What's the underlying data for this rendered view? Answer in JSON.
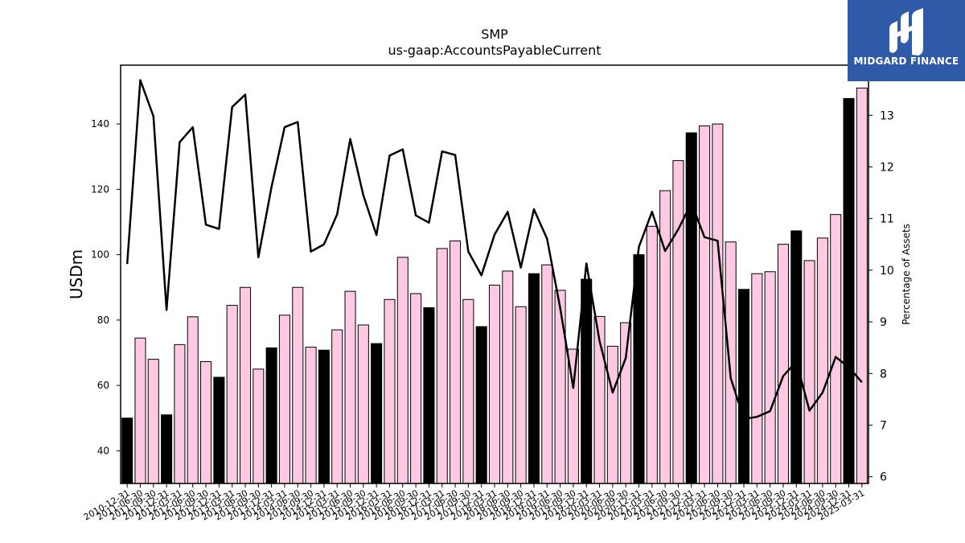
{
  "chart_data": {
    "type": "bar",
    "title": "SMP",
    "subtitle": "us-gaap:AccountsPayableCurrent",
    "ylabel": "USDm",
    "y2label": "Percentage of Assets",
    "ylim": [
      30,
      158
    ],
    "y2lim": [
      5.87,
      13.97
    ],
    "yticks": [
      40,
      60,
      80,
      100,
      120,
      140
    ],
    "y2ticks": [
      6,
      7,
      8,
      9,
      10,
      11,
      12,
      13
    ],
    "categories": [
      "2010-12-31",
      "2011-06-30",
      "2011-09-30",
      "2011-12-31",
      "2012-03-31",
      "2012-06-30",
      "2012-09-30",
      "2012-12-31",
      "2013-03-31",
      "2013-06-30",
      "2013-09-30",
      "2013-12-31",
      "2014-03-31",
      "2014-06-30",
      "2014-09-30",
      "2014-12-31",
      "2015-03-31",
      "2015-06-30",
      "2015-09-30",
      "2015-12-31",
      "2016-03-31",
      "2016-06-30",
      "2016-09-30",
      "2016-12-31",
      "2017-03-31",
      "2017-06-30",
      "2017-09-30",
      "2017-12-31",
      "2018-03-31",
      "2018-06-30",
      "2018-09-30",
      "2018-12-31",
      "2019-03-31",
      "2019-06-30",
      "2019-09-30",
      "2019-12-31",
      "2020-03-31",
      "2020-06-30",
      "2020-09-30",
      "2020-12-31",
      "2021-03-31",
      "2021-06-30",
      "2021-09-30",
      "2021-12-31",
      "2022-03-31",
      "2022-06-30",
      "2022-09-30",
      "2022-12-31",
      "2023-03-31",
      "2023-06-30",
      "2023-09-30",
      "2023-12-31",
      "2024-03-31",
      "2024-06-30",
      "2024-09-30",
      "2024-12-31",
      "2025-03-31"
    ],
    "series": [
      {
        "kind": "bar",
        "axis": "left",
        "values": [
          50.0,
          74.5,
          68.0,
          51.0,
          72.5,
          81.0,
          67.3,
          62.5,
          84.5,
          90.0,
          65.0,
          71.5,
          81.5,
          90.0,
          71.7,
          70.8,
          77.0,
          88.8,
          78.5,
          72.8,
          86.3,
          99.2,
          88.1,
          83.8,
          101.9,
          104.2,
          86.3,
          78.0,
          90.7,
          95.0,
          84.1,
          94.2,
          96.9,
          89.1,
          71.1,
          92.5,
          81.1,
          72.0,
          79.2,
          100.0,
          108.7,
          119.6,
          128.8,
          137.3,
          139.4,
          140.0,
          103.9,
          89.4,
          94.2,
          94.8,
          103.2,
          107.3,
          98.2,
          105.1,
          112.3,
          147.8,
          151.0
        ],
        "highlight": [
          true,
          false,
          false,
          true,
          false,
          false,
          false,
          true,
          false,
          false,
          false,
          true,
          false,
          false,
          false,
          true,
          false,
          false,
          false,
          true,
          false,
          false,
          false,
          true,
          false,
          false,
          false,
          true,
          false,
          false,
          false,
          true,
          false,
          false,
          false,
          true,
          false,
          false,
          false,
          true,
          false,
          false,
          false,
          true,
          false,
          false,
          false,
          true,
          false,
          false,
          false,
          true,
          false,
          false,
          false,
          true,
          false
        ]
      },
      {
        "kind": "line",
        "axis": "right",
        "values": [
          10.12,
          13.68,
          12.98,
          9.23,
          12.48,
          12.77,
          10.88,
          10.8,
          13.16,
          13.4,
          10.25,
          11.61,
          12.77,
          12.87,
          10.36,
          10.5,
          11.08,
          12.54,
          11.45,
          10.68,
          12.22,
          12.34,
          11.06,
          10.92,
          12.3,
          12.23,
          10.36,
          9.9,
          10.69,
          11.13,
          10.05,
          11.18,
          10.61,
          9.27,
          7.72,
          10.13,
          8.63,
          7.63,
          8.3,
          10.45,
          11.13,
          10.37,
          10.79,
          11.3,
          10.64,
          10.57,
          7.91,
          7.12,
          7.16,
          7.27,
          7.95,
          8.23,
          7.28,
          7.63,
          8.32,
          8.12,
          7.83
        ]
      }
    ],
    "colors": {
      "bar": "#ffc8e3",
      "bar_highlight": "#000000",
      "line": "#000000",
      "axes": "#000000"
    },
    "grid": false,
    "legend": "none"
  },
  "brand": {
    "name": "MIDGARD FINANCE",
    "logo_icon": "midgard-m-icon",
    "background": "#2e5aa8"
  }
}
